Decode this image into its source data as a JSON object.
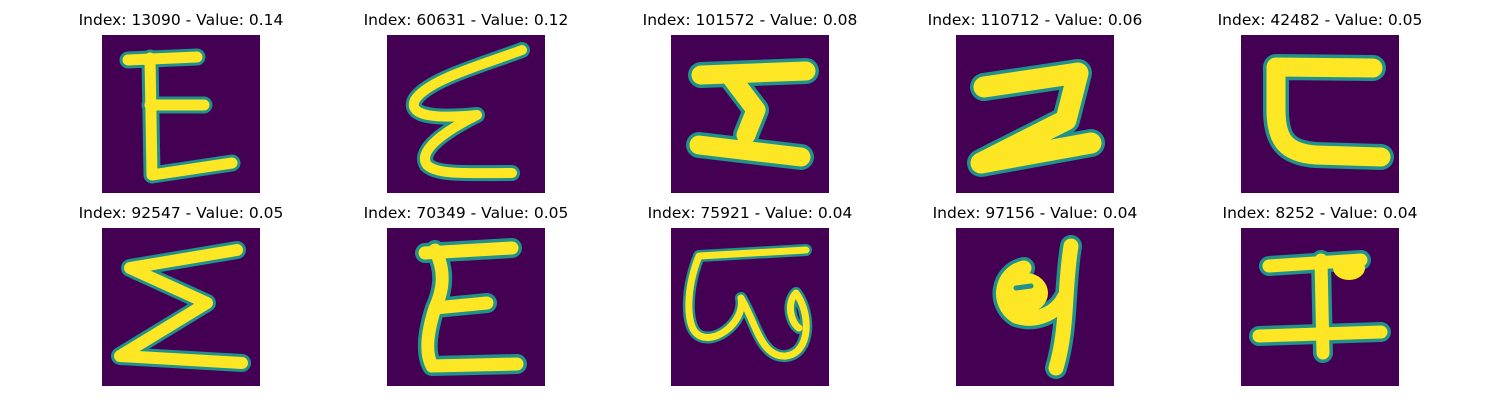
{
  "figure": {
    "background": "#ffffff",
    "colormap": {
      "background": "#440154",
      "mid": "#21918c",
      "foreground": "#fde725"
    },
    "panels": [
      {
        "index": "13090",
        "value": "0.14",
        "title": "Index: 13090 - Value: 0.14",
        "glyph": "E-form character"
      },
      {
        "index": "60631",
        "value": "0.12",
        "title": "Index: 60631 - Value: 0.12",
        "glyph": "slanted E-form character"
      },
      {
        "index": "101572",
        "value": "0.08",
        "title": "Index: 101572 - Value: 0.08",
        "glyph": "bar-stem-base character"
      },
      {
        "index": "110712",
        "value": "0.06",
        "title": "Index: 110712 - Value: 0.06",
        "glyph": "Z-form character"
      },
      {
        "index": "42482",
        "value": "0.05",
        "title": "Index: 42482 - Value: 0.05",
        "glyph": "C-form character"
      },
      {
        "index": "92547",
        "value": "0.05",
        "title": "Index: 92547 - Value: 0.05",
        "glyph": "Sigma-form character"
      },
      {
        "index": "70349",
        "value": "0.05",
        "title": "Index: 70349 - Value: 0.05",
        "glyph": "E-form character"
      },
      {
        "index": "75921",
        "value": "0.04",
        "title": "Index: 75921 - Value: 0.04",
        "glyph": "looped W-form character"
      },
      {
        "index": "97156",
        "value": "0.04",
        "title": "Index: 97156 - Value: 0.04",
        "glyph": "hooked g-form character"
      },
      {
        "index": "8252",
        "value": "0.04",
        "title": "Index: 8252 - Value: 0.04",
        "glyph": "I-form character"
      }
    ]
  }
}
